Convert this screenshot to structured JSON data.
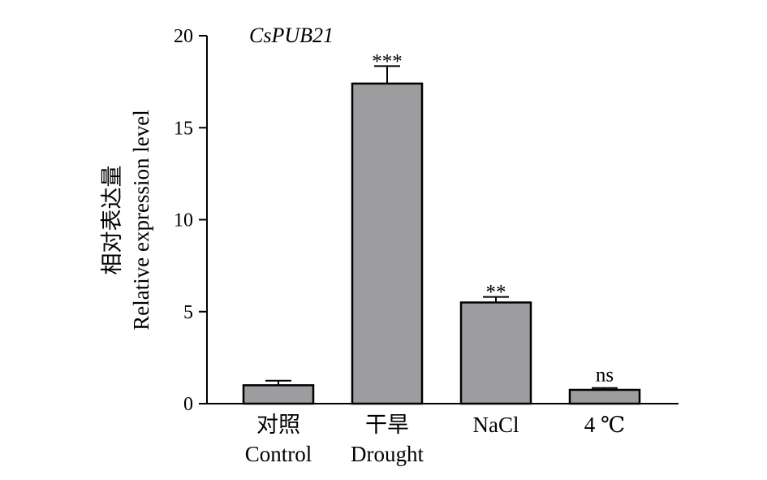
{
  "chart_data": {
    "type": "bar",
    "title": "CsPUB21",
    "ylabel_cn": "相对表达量",
    "ylabel": "Relative expression level",
    "ylim": [
      0,
      20
    ],
    "yticks": [
      0,
      5,
      10,
      15,
      20
    ],
    "categories": [
      {
        "cn": "对照",
        "en": "Control"
      },
      {
        "cn": "干旱",
        "en": "Drought"
      },
      {
        "cn": "NaCl",
        "en": ""
      },
      {
        "cn": "4 ℃",
        "en": ""
      }
    ],
    "values": [
      1.0,
      17.4,
      5.5,
      0.75
    ],
    "errors": [
      0.25,
      0.95,
      0.3,
      0.1
    ],
    "significance": [
      "",
      "***",
      "**",
      "ns"
    ],
    "bar_color": "#9d9d9f"
  }
}
